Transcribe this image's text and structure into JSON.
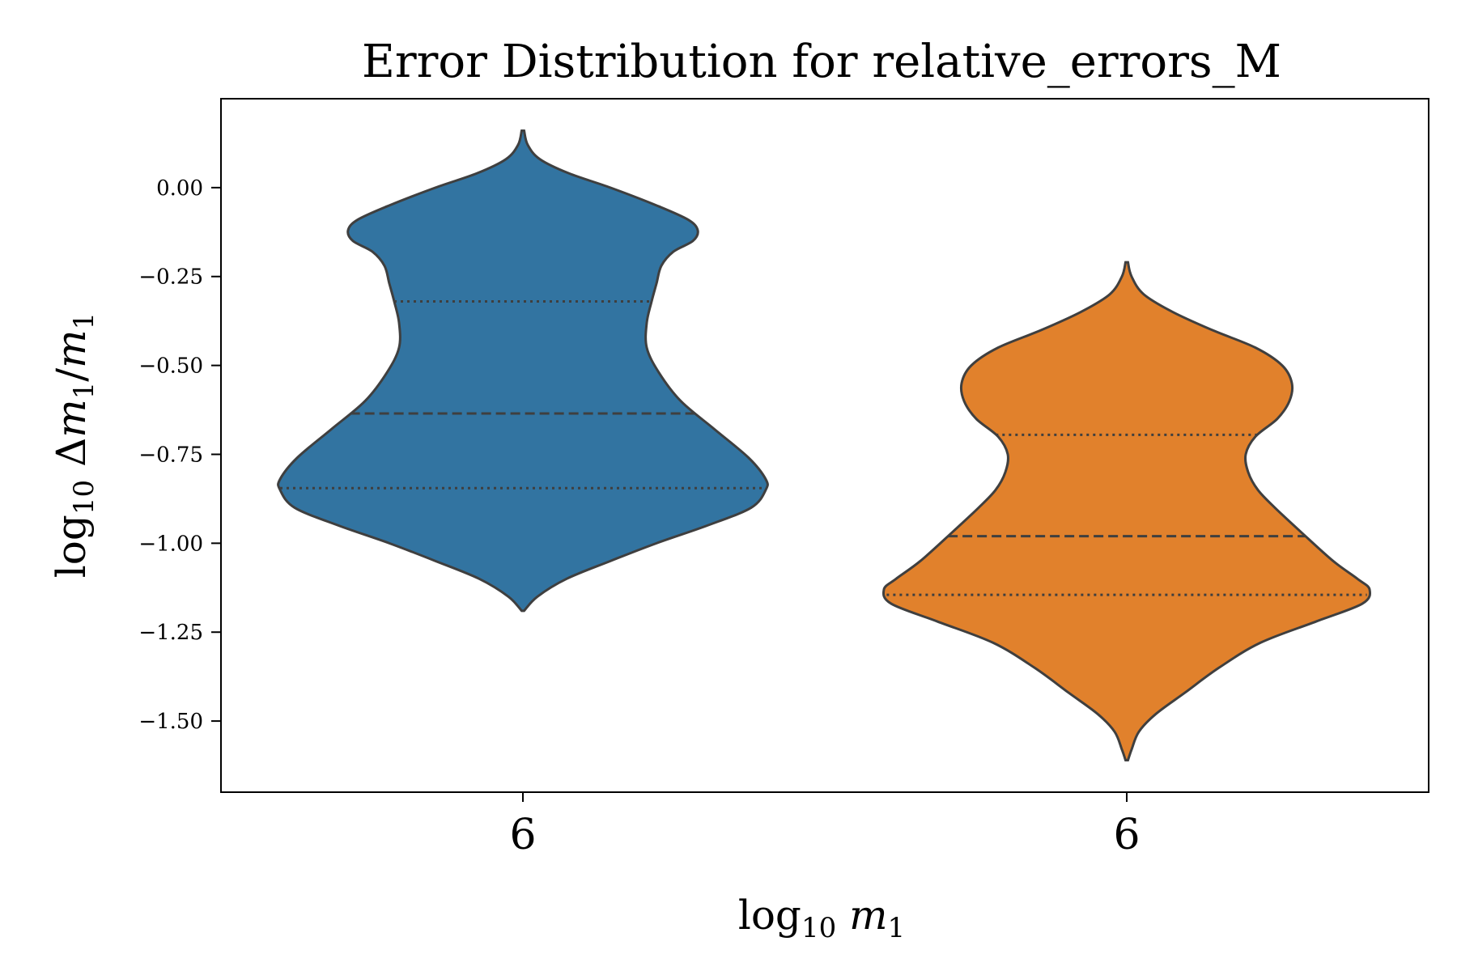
{
  "chart_data": {
    "type": "violin",
    "title": "Error Distribution for relative_errors_M",
    "xlabel": "log10 m1",
    "ylabel": "log10 Δm1/m1",
    "categories": [
      "6",
      "6"
    ],
    "ylim": [
      -1.7,
      0.25
    ],
    "yticks": [
      0.0,
      -0.25,
      -0.5,
      -0.75,
      -1.0,
      -1.25,
      -1.5
    ],
    "ytick_labels": [
      "0.00",
      "−0.25",
      "−0.50",
      "−0.75",
      "−1.00",
      "−1.25",
      "−1.50"
    ],
    "grid": false,
    "legend": "none",
    "series": [
      {
        "color": "#3274a1",
        "y_min": -1.19,
        "y_max": 0.16,
        "quartiles": {
          "q1": -0.845,
          "median": -0.635,
          "q3": -0.32
        },
        "density_profile": [
          [
            0.16,
            0.005
          ],
          [
            0.12,
            0.02
          ],
          [
            0.08,
            0.07
          ],
          [
            0.04,
            0.19
          ],
          [
            0.0,
            0.36
          ],
          [
            -0.05,
            0.55
          ],
          [
            -0.09,
            0.68
          ],
          [
            -0.12,
            0.72
          ],
          [
            -0.15,
            0.7
          ],
          [
            -0.18,
            0.62
          ],
          [
            -0.22,
            0.57
          ],
          [
            -0.27,
            0.55
          ],
          [
            -0.32,
            0.53
          ],
          [
            -0.38,
            0.51
          ],
          [
            -0.45,
            0.51
          ],
          [
            -0.52,
            0.56
          ],
          [
            -0.6,
            0.65
          ],
          [
            -0.68,
            0.79
          ],
          [
            -0.76,
            0.93
          ],
          [
            -0.82,
            1.0
          ],
          [
            -0.85,
            1.0
          ],
          [
            -0.9,
            0.94
          ],
          [
            -0.95,
            0.76
          ],
          [
            -1.0,
            0.55
          ],
          [
            -1.05,
            0.36
          ],
          [
            -1.1,
            0.18
          ],
          [
            -1.15,
            0.06
          ],
          [
            -1.19,
            0.005
          ]
        ]
      },
      {
        "color": "#e1812c",
        "y_min": -1.61,
        "y_max": -0.21,
        "quartiles": {
          "q1": -1.145,
          "median": -0.98,
          "q3": -0.695
        },
        "density_profile": [
          [
            -0.21,
            0.005
          ],
          [
            -0.25,
            0.02
          ],
          [
            -0.3,
            0.07
          ],
          [
            -0.35,
            0.19
          ],
          [
            -0.4,
            0.35
          ],
          [
            -0.45,
            0.53
          ],
          [
            -0.5,
            0.64
          ],
          [
            -0.55,
            0.68
          ],
          [
            -0.6,
            0.67
          ],
          [
            -0.65,
            0.62
          ],
          [
            -0.7,
            0.53
          ],
          [
            -0.75,
            0.49
          ],
          [
            -0.8,
            0.5
          ],
          [
            -0.85,
            0.54
          ],
          [
            -0.9,
            0.61
          ],
          [
            -0.97,
            0.72
          ],
          [
            -1.05,
            0.85
          ],
          [
            -1.1,
            0.95
          ],
          [
            -1.13,
            1.0
          ],
          [
            -1.17,
            0.97
          ],
          [
            -1.22,
            0.78
          ],
          [
            -1.28,
            0.55
          ],
          [
            -1.35,
            0.38
          ],
          [
            -1.42,
            0.24
          ],
          [
            -1.48,
            0.12
          ],
          [
            -1.53,
            0.05
          ],
          [
            -1.58,
            0.02
          ],
          [
            -1.61,
            0.005
          ]
        ]
      }
    ]
  }
}
